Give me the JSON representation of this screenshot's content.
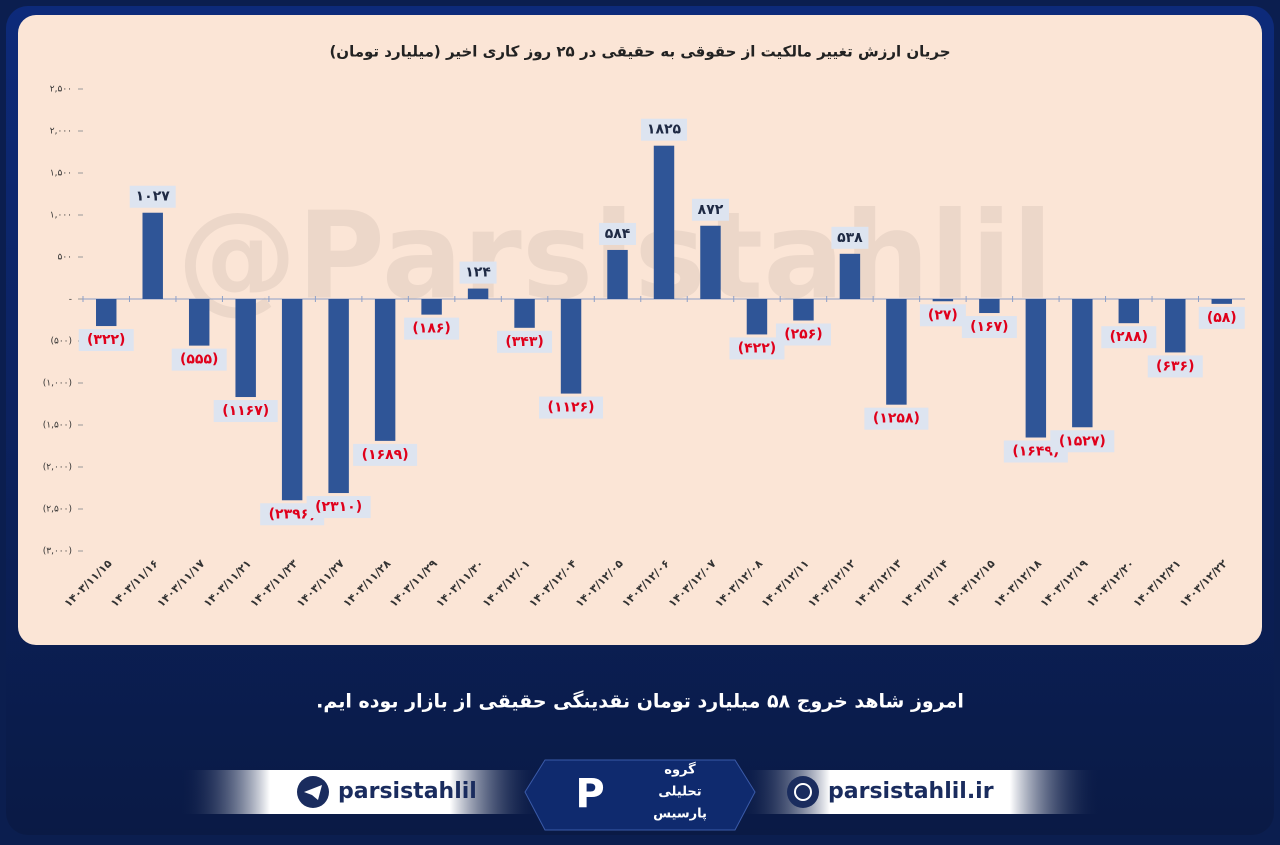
{
  "chart_data": {
    "type": "bar",
    "title": "جریان ارزش تغییر مالکیت از حقوقی به حقیقی در ۲۵ روز کاری اخیر (میلیارد تومان)",
    "categories": [
      "۱۴۰۳/۱۱/۱۵",
      "۱۴۰۳/۱۱/۱۶",
      "۱۴۰۳/۱۱/۱۷",
      "۱۴۰۳/۱۱/۲۱",
      "۱۴۰۳/۱۱/۲۳",
      "۱۴۰۳/۱۱/۲۷",
      "۱۴۰۳/۱۱/۲۸",
      "۱۴۰۳/۱۱/۲۹",
      "۱۴۰۳/۱۱/۳۰",
      "۱۴۰۳/۱۲/۰۱",
      "۱۴۰۳/۱۲/۰۴",
      "۱۴۰۳/۱۲/۰۵",
      "۱۴۰۳/۱۲/۰۶",
      "۱۴۰۳/۱۲/۰۷",
      "۱۴۰۳/۱۲/۰۸",
      "۱۴۰۳/۱۲/۱۱",
      "۱۴۰۳/۱۲/۱۲",
      "۱۴۰۳/۱۲/۱۳",
      "۱۴۰۳/۱۲/۱۴",
      "۱۴۰۳/۱۲/۱۵",
      "۱۴۰۳/۱۲/۱۸",
      "۱۴۰۳/۱۲/۱۹",
      "۱۴۰۳/۱۲/۲۰",
      "۱۴۰۳/۱۲/۲۱",
      "۱۴۰۳/۱۲/۲۲"
    ],
    "values": [
      -322,
      1027,
      -555,
      -1167,
      -2396,
      -2310,
      -1689,
      -186,
      124,
      -343,
      -1126,
      584,
      1825,
      872,
      -422,
      -256,
      538,
      -1258,
      -27,
      -167,
      -1649,
      -1527,
      -288,
      -636,
      -58
    ],
    "value_labels": [
      "(۳۲۲)",
      "۱۰۲۷",
      "(۵۵۵)",
      "(۱۱۶۷)",
      "(۲۳۹۶)",
      "(۲۳۱۰)",
      "(۱۶۸۹)",
      "(۱۸۶)",
      "۱۲۴",
      "(۳۴۳)",
      "(۱۱۲۶)",
      "۵۸۴",
      "۱۸۲۵",
      "۸۷۲",
      "(۴۲۲)",
      "(۲۵۶)",
      "۵۳۸",
      "(۱۲۵۸)",
      "(۲۷)",
      "(۱۶۷)",
      "(۱۶۴۹)",
      "(۱۵۲۷)",
      "(۲۸۸)",
      "(۶۳۶)",
      "(۵۸)"
    ],
    "color": "#2f5597",
    "positive_label_color": "#1f2a44",
    "negative_label_color": "#e0001b",
    "ylim": [
      -3000,
      2500
    ],
    "yticks": [
      {
        "value": 2500,
        "label": "۲,۵۰۰"
      },
      {
        "value": 2000,
        "label": "۲,۰۰۰"
      },
      {
        "value": 1500,
        "label": "۱,۵۰۰"
      },
      {
        "value": 1000,
        "label": "۱,۰۰۰"
      },
      {
        "value": 500,
        "label": "۵۰۰"
      },
      {
        "value": 0,
        "label": "-"
      },
      {
        "value": -500,
        "label": "(۵۰۰)"
      },
      {
        "value": -1000,
        "label": "(۱,۰۰۰)"
      },
      {
        "value": -1500,
        "label": "(۱,۵۰۰)"
      },
      {
        "value": -2000,
        "label": "(۲,۰۰۰)"
      },
      {
        "value": -2500,
        "label": "(۲,۵۰۰)"
      },
      {
        "value": -3000,
        "label": "(۳,۰۰۰)"
      }
    ],
    "grid": false
  },
  "watermark": "@Parsistahlil",
  "caption": "امروز شاهد خروج ۵۸ میلیارد تومان نقدینگی حقیقی از بازار بوده ایم.",
  "footer": {
    "telegram": "parsistahlil",
    "website": "parsistahlil.ir",
    "logo": [
      "گروه",
      "تحلیلی",
      "پارسیس"
    ]
  }
}
